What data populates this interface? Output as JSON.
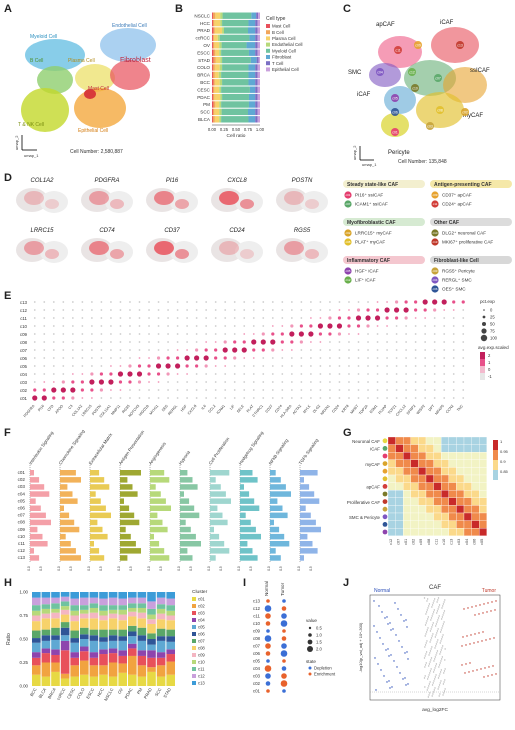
{
  "panels": {
    "a": {
      "label": "A",
      "clusters": [
        "Myeloid Cell",
        "Endothelial Cell",
        "B Cell",
        "Plasma Cell",
        "Fibroblast",
        "Mast Cell",
        "T & NK Cell",
        "Epithelial Cell"
      ],
      "cell_number": "Cell Number: 2,580,887",
      "axis_x": "umap_1",
      "axis_y": "umap_2"
    },
    "b": {
      "label": "B",
      "chart_data": {
        "type": "bar",
        "orientation": "horizontal-stacked",
        "categories": [
          "NSCLC",
          "HCC",
          "PRAD",
          "ccRCC",
          "OV",
          "ESCC",
          "STAD",
          "COLO",
          "BRCA",
          "BCC",
          "CESC",
          "PDAC",
          "PM",
          "SCC",
          "BLCA"
        ],
        "xlabel": "Cell ratio",
        "xticks": [
          "0.00",
          "0.25",
          "0.50",
          "0.75",
          "1.00"
        ],
        "xlim": [
          0,
          1
        ],
        "legend_title": "Cell type",
        "series": [
          {
            "name": "Mast Cell",
            "color": "#e8505b",
            "values": [
              0.02,
              0.02,
              0.03,
              0.02,
              0.02,
              0.03,
              0.03,
              0.02,
              0.02,
              0.03,
              0.02,
              0.02,
              0.03,
              0.02,
              0.02
            ]
          },
          {
            "name": "B Cell",
            "color": "#f2a65a",
            "values": [
              0.05,
              0.03,
              0.03,
              0.02,
              0.03,
              0.04,
              0.05,
              0.04,
              0.04,
              0.03,
              0.03,
              0.03,
              0.04,
              0.03,
              0.04
            ]
          },
          {
            "name": "Plasma Cell",
            "color": "#f7d26a",
            "values": [
              0.1,
              0.12,
              0.15,
              0.08,
              0.1,
              0.08,
              0.09,
              0.1,
              0.08,
              0.1,
              0.1,
              0.12,
              0.08,
              0.1,
              0.09
            ]
          },
          {
            "name": "Endothelial Cell",
            "color": "#b7d97a",
            "values": [
              0.05,
              0.04,
              0.04,
              0.04,
              0.05,
              0.04,
              0.04,
              0.05,
              0.05,
              0.05,
              0.04,
              0.04,
              0.04,
              0.05,
              0.04
            ]
          },
          {
            "name": "Myeloid Cell",
            "color": "#6fc3a0",
            "values": [
              0.6,
              0.55,
              0.5,
              0.62,
              0.52,
              0.58,
              0.6,
              0.55,
              0.57,
              0.55,
              0.6,
              0.56,
              0.58,
              0.55,
              0.57
            ]
          },
          {
            "name": "Fibroblast",
            "color": "#5fa8d3",
            "values": [
              0.1,
              0.14,
              0.15,
              0.12,
              0.18,
              0.13,
              0.12,
              0.14,
              0.14,
              0.14,
              0.11,
              0.13,
              0.13,
              0.15,
              0.14
            ]
          },
          {
            "name": "T Cell",
            "color": "#7b6fc4",
            "values": [
              0.04,
              0.05,
              0.05,
              0.05,
              0.05,
              0.05,
              0.04,
              0.05,
              0.05,
              0.05,
              0.05,
              0.05,
              0.05,
              0.05,
              0.05
            ]
          },
          {
            "name": "Epithelial Cell",
            "color": "#c9a0dc",
            "values": [
              0.04,
              0.05,
              0.05,
              0.05,
              0.05,
              0.05,
              0.03,
              0.05,
              0.05,
              0.05,
              0.05,
              0.05,
              0.05,
              0.05,
              0.05
            ]
          }
        ]
      }
    },
    "c": {
      "label": "C",
      "labels": [
        "apCAF",
        "iCAF",
        "SMC",
        "ssICAF",
        "iCAF",
        "myCAF",
        "Pericyte"
      ],
      "cell_number": "Cell Number: 135,848",
      "axis_x": "umap_1",
      "axis_y": "umap_2",
      "cluster_ids": [
        "c01",
        "c02",
        "c03",
        "c04",
        "c05",
        "c06",
        "c07",
        "c08",
        "c09",
        "c10",
        "c11",
        "c12",
        "c13"
      ]
    },
    "legend": {
      "groups": [
        {
          "title": "Steady state-like CAF",
          "color": "#f3efcf",
          "items": [
            {
              "id": "c01",
              "text": "PI16⁺ ssICAF",
              "color": "#e53d6e"
            },
            {
              "id": "c07",
              "text": "ICAM1⁺ ssICAF",
              "color": "#5aa769"
            }
          ]
        },
        {
          "title": "Antigen-presenting CAF",
          "color": "#f5e8a8",
          "items": [
            {
              "id": "c09",
              "text": "CD37⁺ apCAF",
              "color": "#e7a32f"
            },
            {
              "id": "c11",
              "text": "CD24⁺ apCAF",
              "color": "#d23f3a"
            }
          ]
        },
        {
          "title": "Myofibroblastic CAF",
          "color": "#d6ead2",
          "items": [
            {
              "id": "c02",
              "text": "LRRC15⁺ myCAF",
              "color": "#d9a42a"
            },
            {
              "id": "c08",
              "text": "PLAT⁺ myCAF",
              "color": "#e2c02d"
            }
          ]
        },
        {
          "title": "Other CAF",
          "color": "#dcdcdc",
          "items": [
            {
              "id": "c10",
              "text": "DLG2⁺ neuronal CAF",
              "color": "#7a7a2a"
            },
            {
              "id": "c13",
              "text": "MKI67⁺ proliferative CAF",
              "color": "#c0392b"
            }
          ]
        },
        {
          "title": "Inflammatory CAF",
          "color": "#f4c7cf",
          "items": [
            {
              "id": "c05",
              "text": "HGF⁺ iCAF",
              "color": "#8e44ad"
            },
            {
              "id": "c12",
              "text": "LIF⁺ iCAF",
              "color": "#6ab04c"
            }
          ]
        },
        {
          "title": "Fibroblast-like Cell",
          "color": "#d8d8d8",
          "items": [
            {
              "id": "c03",
              "text": "RGS5⁺ Pericyte",
              "color": "#c7a33a"
            },
            {
              "id": "c04",
              "text": "RERGL⁺ SMC",
              "color": "#7e57c2"
            },
            {
              "id": "c06",
              "text": "OES⁺ SMC",
              "color": "#2f5597"
            }
          ]
        }
      ]
    },
    "d": {
      "label": "D",
      "genes_row1": [
        "COL1A2",
        "PDGFRA",
        "PI16",
        "CXCL8",
        "POSTN"
      ],
      "genes_row2": [
        "LRRC15",
        "CD74",
        "CD37",
        "CD24",
        "RGS5"
      ]
    },
    "e": {
      "label": "E",
      "rows": [
        "c13",
        "c12",
        "c11",
        "c10",
        "c09",
        "c08",
        "c07",
        "c06",
        "c05",
        "c04",
        "c03",
        "c02",
        "c01"
      ],
      "genes": [
        "PDGFRA",
        "PI16",
        "CFD",
        "APOD",
        "C3",
        "COL1A2",
        "LRRC15",
        "POSTN",
        "COL11A1",
        "MMP11",
        "RGS5",
        "NOTCH3",
        "HIGD1B",
        "MYH11",
        "DES",
        "RERGL",
        "HGF",
        "CXCL8",
        "IL6",
        "CCL2",
        "ICAM1",
        "LIF",
        "SELE",
        "PLAT",
        "CTHRC1",
        "CD37",
        "CD74",
        "HLA-DRA",
        "ACTA2",
        "MYLK",
        "DLG2",
        "NRXN1",
        "CD24",
        "KRT8",
        "MKI67",
        "TOP2A",
        "ESM1",
        "PLVAP",
        "TCF21",
        "CXCL12",
        "SFRP2",
        "WISP2",
        "DPT",
        "MFAP5",
        "CCN2",
        "TNC"
      ],
      "size_legend_title": "pct.exp",
      "size_legend": [
        "0",
        "25",
        "50",
        "75",
        "100"
      ],
      "color_legend_title": "avg.exp.scaled",
      "color_legend": [
        "2",
        "1",
        "0",
        "-1"
      ]
    },
    "f": {
      "label": "F",
      "pathways": [
        "Interleukin Signaling",
        "Chemokine Signaling",
        "Extracellular Matrix",
        "Antigen Presentation",
        "Angiogenesis",
        "Hypoxia",
        "Cell Proliferation",
        "Hedgehog Signaling",
        "NFkB Signaling",
        "TGFb Signaling"
      ],
      "rows": [
        "c01",
        "c02",
        "c03",
        "c04",
        "c05",
        "c06",
        "c07",
        "c08",
        "c09",
        "c10",
        "c11",
        "c12",
        "c13"
      ]
    },
    "g": {
      "label": "G",
      "groups": [
        "Neuronal CAF",
        "iCAF",
        "myCAF",
        "apCAF",
        "Proliferative CAF",
        "SMC & Pericyte"
      ],
      "scale": [
        "1",
        "0.95",
        "0.9",
        "0.85"
      ],
      "cols": [
        "c12",
        "c07",
        "c01",
        "c02",
        "c09",
        "c08",
        "c11",
        "c10",
        "c13",
        "c03",
        "c04",
        "c06",
        "c05"
      ]
    },
    "h": {
      "label": "H",
      "chart_data": {
        "type": "bar",
        "orientation": "vertical-stacked",
        "categories": [
          "BCC",
          "BLCA",
          "BRCA",
          "ccRCC",
          "CESC",
          "COLO",
          "ESCC",
          "HCC",
          "NSCLC",
          "OV",
          "PDAC",
          "PM",
          "PRAD",
          "SCC",
          "STAD"
        ],
        "ylabel": "Ratio",
        "yticks": [
          "0.00",
          "0.25",
          "0.50",
          "0.75",
          "1.00"
        ],
        "ylim": [
          0,
          1
        ],
        "legend_title": "Cluster",
        "series": [
          {
            "name": "c01",
            "color": "#e7d944",
            "values": [
              0.12,
              0.1,
              0.15,
              0.08,
              0.1,
              0.12,
              0.1,
              0.12,
              0.1,
              0.14,
              0.12,
              0.1,
              0.15,
              0.1,
              0.12
            ]
          },
          {
            "name": "c02",
            "color": "#f1a340",
            "values": [
              0.1,
              0.15,
              0.1,
              0.05,
              0.12,
              0.15,
              0.12,
              0.1,
              0.15,
              0.1,
              0.2,
              0.12,
              0.05,
              0.12,
              0.14
            ]
          },
          {
            "name": "c03",
            "color": "#e8505b",
            "values": [
              0.08,
              0.1,
              0.08,
              0.25,
              0.08,
              0.1,
              0.08,
              0.12,
              0.1,
              0.08,
              0.08,
              0.1,
              0.1,
              0.08,
              0.08
            ]
          },
          {
            "name": "c04",
            "color": "#8e44ad",
            "values": [
              0.06,
              0.05,
              0.06,
              0.1,
              0.06,
              0.05,
              0.06,
              0.05,
              0.05,
              0.06,
              0.05,
              0.06,
              0.08,
              0.06,
              0.05
            ]
          },
          {
            "name": "c05",
            "color": "#5fa8d3",
            "values": [
              0.1,
              0.08,
              0.1,
              0.06,
              0.1,
              0.08,
              0.12,
              0.08,
              0.08,
              0.1,
              0.08,
              0.1,
              0.06,
              0.12,
              0.08
            ]
          },
          {
            "name": "c06",
            "color": "#2f5597",
            "values": [
              0.05,
              0.06,
              0.05,
              0.08,
              0.05,
              0.05,
              0.06,
              0.05,
              0.06,
              0.05,
              0.05,
              0.06,
              0.06,
              0.05,
              0.06
            ]
          },
          {
            "name": "c07",
            "color": "#5aa769",
            "values": [
              0.08,
              0.06,
              0.08,
              0.06,
              0.08,
              0.07,
              0.06,
              0.08,
              0.06,
              0.07,
              0.06,
              0.08,
              0.06,
              0.08,
              0.07
            ]
          },
          {
            "name": "c08",
            "color": "#f7d26a",
            "values": [
              0.1,
              0.12,
              0.1,
              0.08,
              0.1,
              0.1,
              0.12,
              0.1,
              0.12,
              0.1,
              0.1,
              0.1,
              0.1,
              0.1,
              0.1
            ]
          },
          {
            "name": "c09",
            "color": "#f4b6c2",
            "values": [
              0.06,
              0.05,
              0.06,
              0.05,
              0.06,
              0.05,
              0.06,
              0.05,
              0.05,
              0.06,
              0.05,
              0.06,
              0.05,
              0.06,
              0.05
            ]
          },
          {
            "name": "c10",
            "color": "#b7d97a",
            "values": [
              0.05,
              0.05,
              0.04,
              0.04,
              0.05,
              0.04,
              0.05,
              0.05,
              0.04,
              0.05,
              0.04,
              0.05,
              0.05,
              0.05,
              0.05
            ]
          },
          {
            "name": "c11",
            "color": "#6fc3a0",
            "values": [
              0.06,
              0.05,
              0.06,
              0.05,
              0.06,
              0.05,
              0.05,
              0.06,
              0.05,
              0.05,
              0.05,
              0.05,
              0.06,
              0.05,
              0.06
            ]
          },
          {
            "name": "c12",
            "color": "#c9a0dc",
            "values": [
              0.08,
              0.07,
              0.06,
              0.05,
              0.07,
              0.08,
              0.06,
              0.07,
              0.08,
              0.07,
              0.06,
              0.06,
              0.08,
              0.07,
              0.07
            ]
          },
          {
            "name": "c13",
            "color": "#3c9cd8",
            "values": [
              0.06,
              0.06,
              0.06,
              0.05,
              0.07,
              0.06,
              0.06,
              0.07,
              0.06,
              0.07,
              0.06,
              0.06,
              0.1,
              0.06,
              0.07
            ]
          }
        ]
      }
    },
    "i": {
      "label": "I",
      "cols": [
        "Normal",
        "Tumor"
      ],
      "rows": [
        "c13",
        "c12",
        "c11",
        "c10",
        "c09",
        "c08",
        "c07",
        "c06",
        "c05",
        "c04",
        "c03",
        "c02",
        "c01"
      ],
      "value_title": "value",
      "value_legend": [
        "0.5",
        "1.0",
        "1.5",
        "2.0"
      ],
      "state_title": "state",
      "states": [
        {
          "name": "Depletion",
          "color": "#3b6fd6"
        },
        {
          "name": "Enrichment",
          "color": "#e8622c"
        }
      ],
      "tumor_state": [
        "Depletion",
        "Enrichment",
        "Depletion",
        "Depletion",
        "Enrichment",
        "Enrichment",
        "Depletion",
        "Depletion",
        "Enrichment",
        "Depletion",
        "Enrichment",
        "Enrichment",
        "Depletion"
      ],
      "normal_state": [
        "Enrichment",
        "Depletion",
        "Enrichment",
        "Enrichment",
        "Depletion",
        "Depletion",
        "Enrichment",
        "Enrichment",
        "Depletion",
        "Enrichment",
        "Depletion",
        "Depletion",
        "Enrichment"
      ]
    },
    "j": {
      "label": "J",
      "title": "CAF",
      "left": "Normal",
      "right": "Tumor",
      "xlabel": "avg_log2FC",
      "ylabel": "-log10(p_val_adj + 10^-300)"
    }
  }
}
